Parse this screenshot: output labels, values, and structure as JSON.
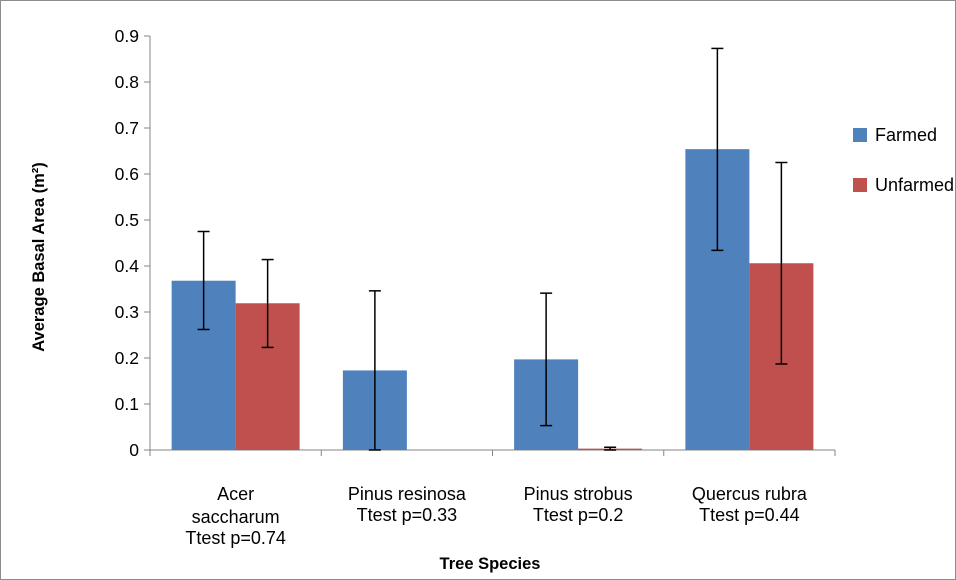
{
  "chart_data": {
    "type": "bar",
    "title": "",
    "xlabel": "Tree Species",
    "ylabel": "Average Basal Area (m²)",
    "ylim": [
      0,
      0.9
    ],
    "yticks": [
      "0",
      "0.1",
      "0.2",
      "0.3",
      "0.4",
      "0.5",
      "0.6",
      "0.7",
      "0.8",
      "0.9"
    ],
    "categories": [
      {
        "name_lines": [
          "Acer",
          "saccharum"
        ],
        "ttest": "Ttest p=0.74"
      },
      {
        "name_lines": [
          "Pinus resinosa"
        ],
        "ttest": "Ttest p=0.33"
      },
      {
        "name_lines": [
          "Pinus strobus"
        ],
        "ttest": "Ttest p=0.2"
      },
      {
        "name_lines": [
          "Quercus rubra"
        ],
        "ttest": "Ttest p=0.44"
      }
    ],
    "series": [
      {
        "name": "Farmed",
        "color": "#4f81bd",
        "values": [
          0.368,
          0.173,
          0.197,
          0.654
        ],
        "error_low": [
          0.262,
          0.0,
          0.053,
          0.434
        ],
        "error_high": [
          0.475,
          0.346,
          0.341,
          0.873
        ]
      },
      {
        "name": "Unfarmed",
        "color": "#c0504d",
        "values": [
          0.319,
          0.0,
          0.003,
          0.406
        ],
        "error_low": [
          0.223,
          null,
          0.0,
          0.187
        ],
        "error_high": [
          0.414,
          null,
          0.006,
          0.625
        ]
      }
    ],
    "legend_position": "right",
    "grid": false
  }
}
